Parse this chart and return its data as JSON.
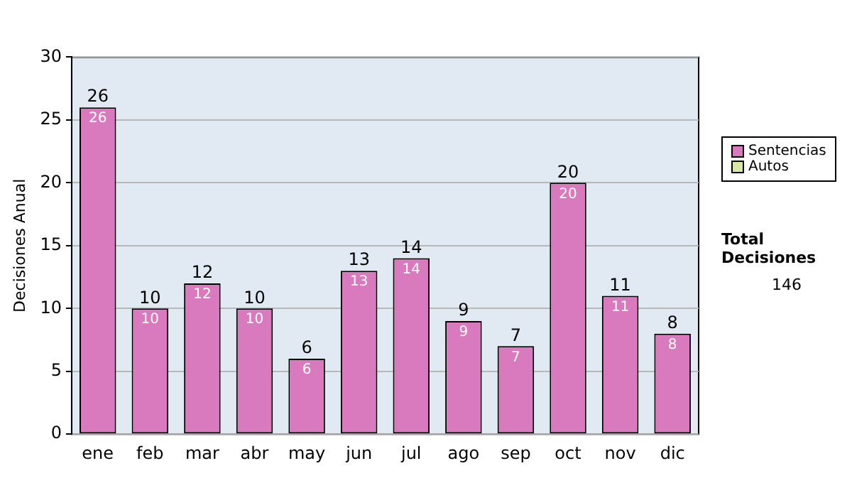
{
  "chart_data": {
    "type": "bar",
    "stacked": true,
    "ylabel": "Decisiones Anual",
    "categories": [
      "ene",
      "feb",
      "mar",
      "abr",
      "may",
      "jun",
      "jul",
      "ago",
      "sep",
      "oct",
      "nov",
      "dic"
    ],
    "series": [
      {
        "name": "Sentencias",
        "color": "#d97abf",
        "values": [
          26,
          10,
          12,
          10,
          6,
          13,
          14,
          9,
          7,
          20,
          11,
          8
        ],
        "value_labels": [
          "26",
          "10",
          "12",
          "10",
          "6",
          "13",
          "14",
          "9",
          "7",
          "20",
          "11",
          "8"
        ]
      },
      {
        "name": "Autos",
        "color": "#d6e8a2",
        "values": [
          0,
          0,
          0,
          0,
          0,
          0,
          0,
          0,
          0,
          0,
          0,
          0
        ]
      }
    ],
    "totals": [
      "26",
      "10",
      "12",
      "10",
      "6",
      "13",
      "14",
      "9",
      "7",
      "20",
      "11",
      "8"
    ],
    "ylim": [
      0,
      30
    ],
    "yticks": [
      0,
      5,
      10,
      15,
      20,
      25,
      30
    ],
    "grid": "y",
    "legend": "right",
    "annotations": [
      "Total Decisiones",
      "146"
    ]
  }
}
